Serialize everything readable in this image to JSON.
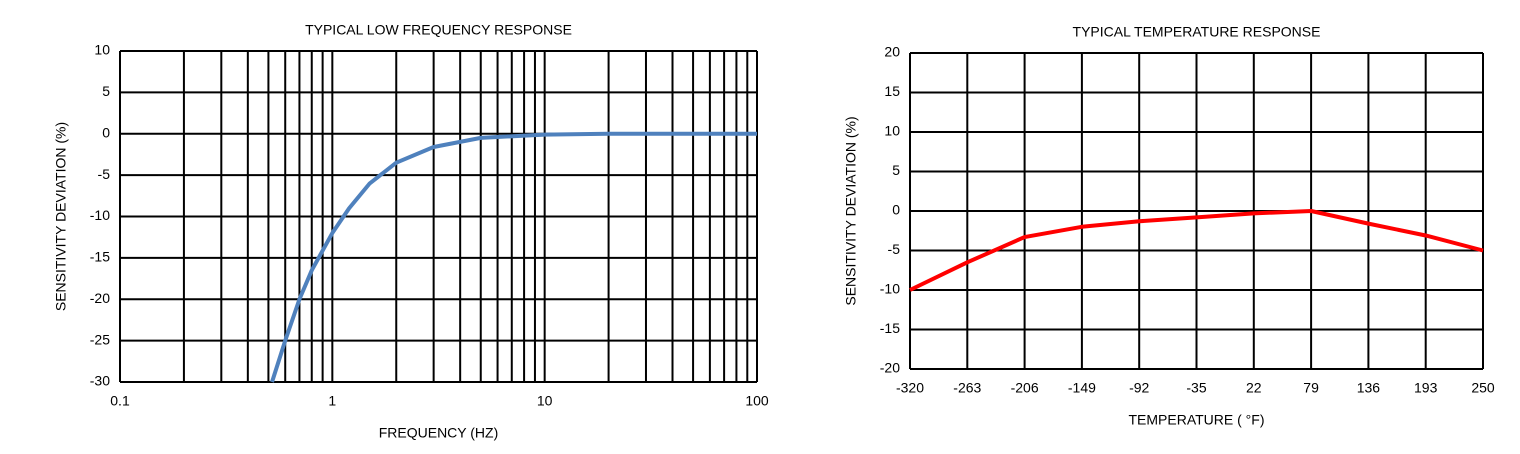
{
  "chart_data": [
    {
      "type": "line",
      "title": "TYPICAL LOW FREQUENCY RESPONSE",
      "x_label": "FREQUENCY (HZ)",
      "y_label": "SENSITIVITY DEVIATION (%)",
      "x": [
        0.52,
        0.6,
        0.7,
        0.8,
        1,
        1.2,
        1.5,
        2,
        3,
        5,
        10,
        20,
        100
      ],
      "values": [
        -30,
        -25,
        -20,
        -16.5,
        -12,
        -9,
        -6,
        -3.5,
        -1.6,
        -0.5,
        -0.1,
        0,
        0
      ],
      "color": "#4f81bd",
      "xscale": "log",
      "minor_grid": true,
      "grid": true,
      "xlim": [
        0.1,
        100
      ],
      "xticks": [
        0.1,
        1,
        10,
        100
      ],
      "ylim": [
        -30,
        10
      ],
      "yticks": [
        10,
        5,
        0,
        -5,
        -10,
        -15,
        -20,
        -25,
        -30
      ]
    },
    {
      "type": "line",
      "title": "TYPICAL TEMPERATURE RESPONSE",
      "x_label": "TEMPERATURE ( °F)",
      "y_label": "SENSITIVITY DEVIATION (%)",
      "x": [
        -320,
        -263,
        -206,
        -149,
        -92,
        -35,
        22,
        79,
        136,
        193,
        250
      ],
      "values": [
        -10,
        -6.5,
        -3.3,
        -2,
        -1.3,
        -0.8,
        -0.3,
        0,
        -1.6,
        -3.1,
        -5
      ],
      "color": "#ff0000",
      "xscale": "linear",
      "minor_grid": false,
      "grid": true,
      "xlim": [
        -320,
        250
      ],
      "xticks": [
        -320,
        -263,
        -206,
        -149,
        -92,
        -35,
        22,
        79,
        136,
        193,
        250
      ],
      "ylim": [
        -20,
        20
      ],
      "yticks": [
        20,
        15,
        10,
        5,
        0,
        -5,
        -10,
        -15,
        -20
      ]
    }
  ]
}
